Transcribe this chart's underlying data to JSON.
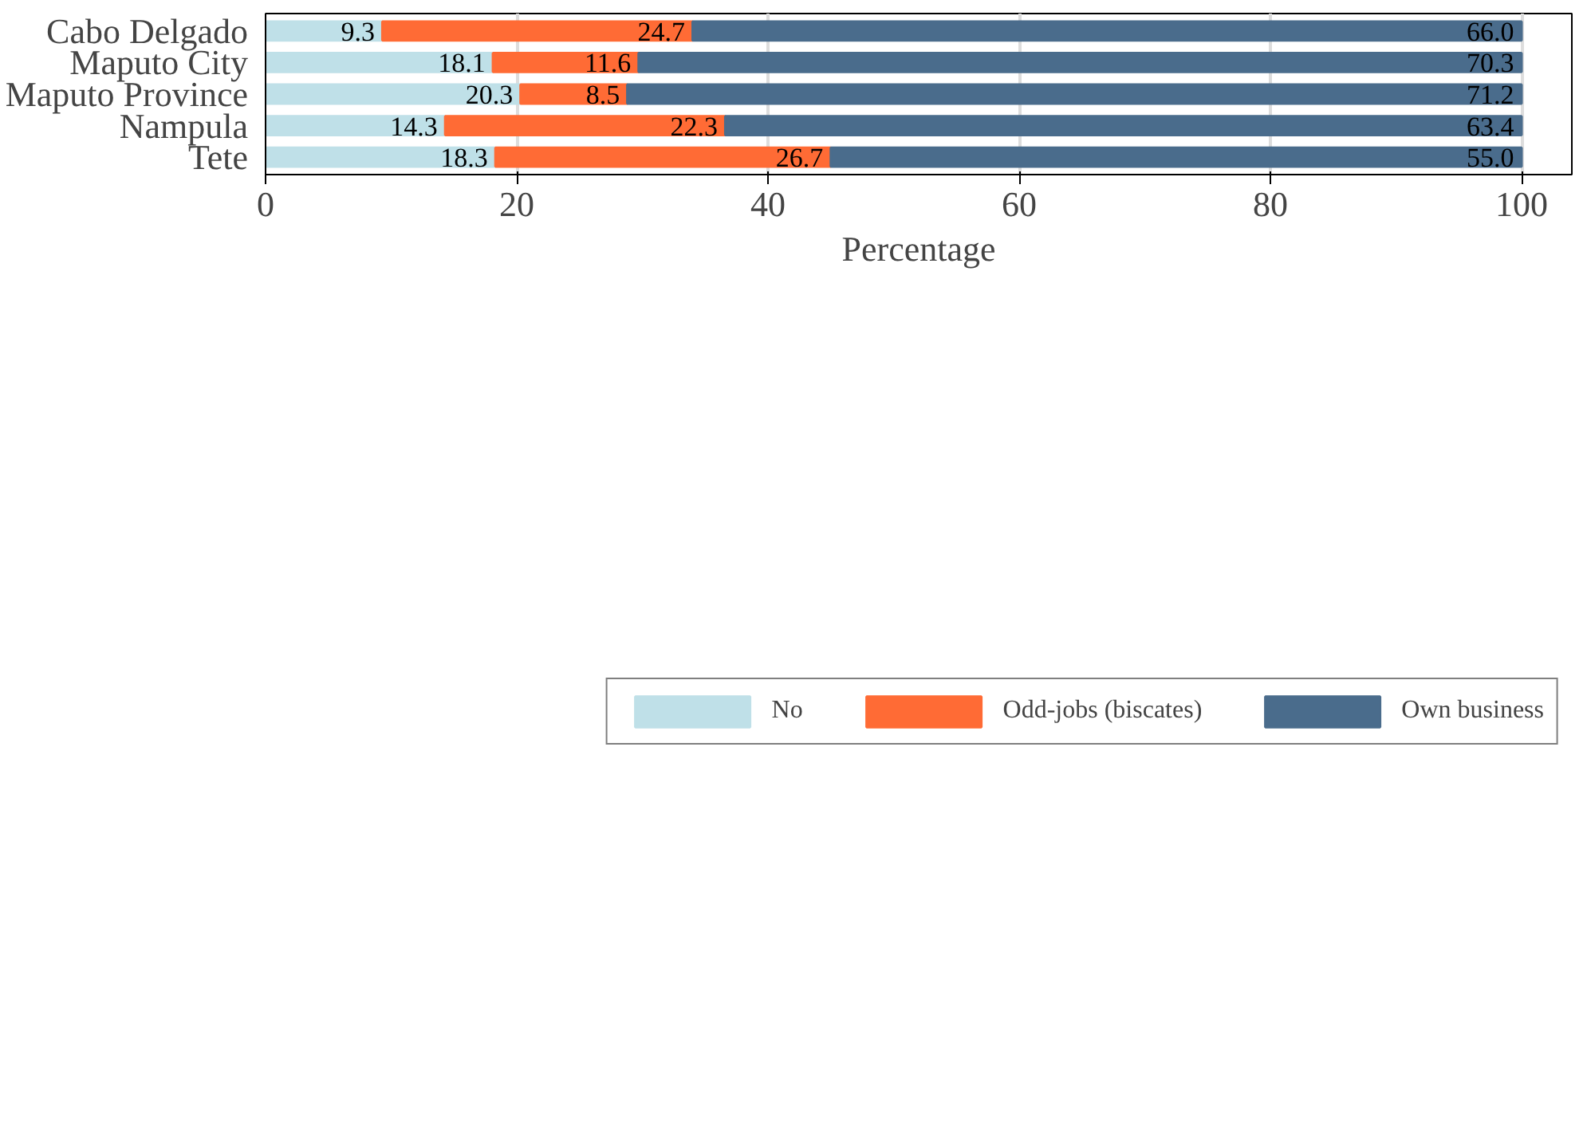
{
  "chart_data": {
    "type": "bar",
    "orientation": "horizontal",
    "stacked": true,
    "xlabel": "Percentage",
    "categories": [
      "Cabo Delgado",
      "Maputo City",
      "Maputo Province",
      "Nampula",
      "Tete"
    ],
    "series": [
      {
        "name": "No",
        "color": "#bfe0e8",
        "values": [
          9.3,
          18.1,
          20.3,
          14.3,
          18.3
        ],
        "value_labels": [
          "9.3",
          "18.1",
          "20.3",
          "14.3",
          "18.3"
        ]
      },
      {
        "name": "Odd-jobs (biscates)",
        "color": "#ff6b35",
        "values": [
          24.7,
          11.6,
          8.5,
          22.3,
          26.7
        ],
        "value_labels": [
          "24.7",
          "11.6",
          "8.5",
          "22.3",
          "26.7"
        ]
      },
      {
        "name": "Own business",
        "color": "#4a6c8c",
        "values": [
          66.0,
          70.3,
          71.2,
          63.4,
          55.0
        ],
        "value_labels": [
          "66.0",
          "70.3",
          "71.2",
          "63.4",
          "55.0"
        ]
      }
    ],
    "xlim": [
      0,
      104
    ],
    "xticks": [
      0,
      20,
      40,
      60,
      80,
      100
    ],
    "grid": "x",
    "legend": "bottom"
  }
}
